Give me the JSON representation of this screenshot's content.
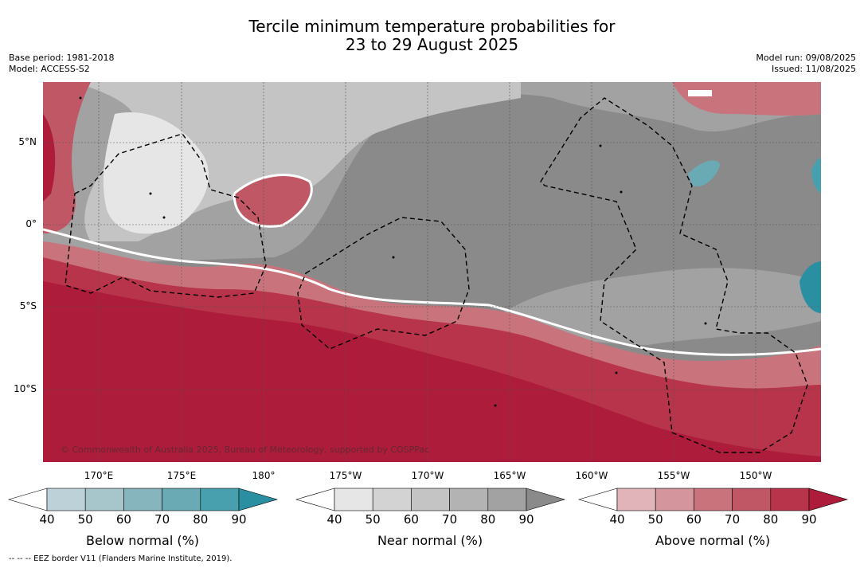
{
  "title": {
    "line1": "Tercile minimum temperature probabilities for",
    "line2": "23 to 29 August 2025"
  },
  "meta": {
    "base_period": "Base period: 1981-2018",
    "model": "Model: ACCESS-S2",
    "model_run": "Model run: 09/08/2025",
    "issued": "Issued: 11/08/2025"
  },
  "map": {
    "lat_labels": [
      "5°N",
      "0°",
      "5°S",
      "10°S"
    ],
    "lon_labels": [
      "170°E",
      "175°E",
      "180°",
      "175°W",
      "170°W",
      "165°W",
      "160°W",
      "155°W",
      "150°W"
    ],
    "copyright": "© Commonwealth of Australia 2025, Bureau of Meteorology, supported by COSPPac",
    "dominant_category": "Above normal in south and far west, near normal in central and north-east, small below normal patches near eastern edge"
  },
  "colorbars": [
    {
      "label": "Below normal (%)",
      "ticks": [
        "40",
        "50",
        "60",
        "70",
        "80",
        "90"
      ],
      "colors": [
        "#ffffff",
        "#bdd2d8",
        "#a6c6cc",
        "#87b5be",
        "#6aaab5",
        "#48a0ae",
        "#2a8fa0"
      ]
    },
    {
      "label": "Near normal (%)",
      "ticks": [
        "40",
        "50",
        "60",
        "70",
        "80",
        "90"
      ],
      "colors": [
        "#ffffff",
        "#e6e6e6",
        "#d3d3d3",
        "#c4c4c4",
        "#b3b3b3",
        "#a2a2a2",
        "#8a8a8a"
      ]
    },
    {
      "label": "Above normal (%)",
      "ticks": [
        "40",
        "50",
        "60",
        "70",
        "80",
        "90"
      ],
      "colors": [
        "#ffffff",
        "#e0b4b9",
        "#d4959c",
        "#c9747d",
        "#c05765",
        "#b8344a",
        "#ad1c3a"
      ]
    }
  ],
  "footer": {
    "eez": "--  --  -- EEZ border V11 (Flanders Marine Institute, 2019)."
  }
}
